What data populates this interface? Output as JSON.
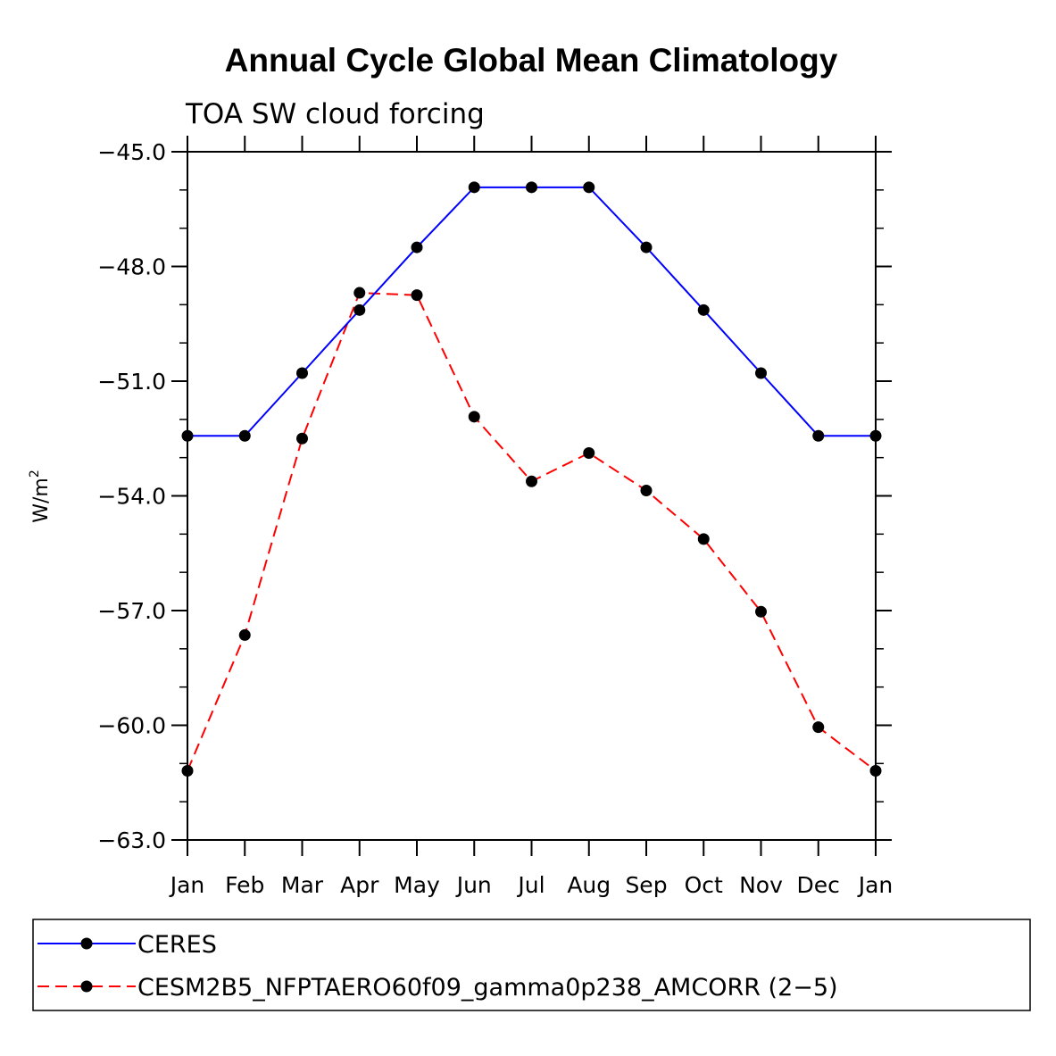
{
  "chart_data": {
    "type": "line",
    "title": "Annual Cycle Global Mean Climatology",
    "subtitle": "TOA SW cloud forcing",
    "xlabel": "",
    "ylabel": "W/m",
    "ylabel_superscript": "2",
    "categories": [
      "Jan",
      "Feb",
      "Mar",
      "Apr",
      "May",
      "Jun",
      "Jul",
      "Aug",
      "Sep",
      "Oct",
      "Nov",
      "Dec",
      "Jan"
    ],
    "ylim": [
      -63.0,
      -45.0
    ],
    "yticks": [
      -45.0,
      -48.0,
      -51.0,
      -54.0,
      -57.0,
      -60.0,
      -63.0
    ],
    "ytick_labels": [
      "−45.0",
      "−48.0",
      "−51.0",
      "−54.0",
      "−57.0",
      "−60.0",
      "−63.0"
    ],
    "grid": false,
    "legend_position": "bottom",
    "series": [
      {
        "name": "CERES",
        "color": "#0000ff",
        "line_style": "solid",
        "marker": "filled-circle",
        "values": [
          -52.43,
          -52.43,
          -50.79,
          -49.14,
          -47.5,
          -45.93,
          -45.93,
          -45.93,
          -47.5,
          -49.14,
          -50.79,
          -52.43,
          -52.43
        ]
      },
      {
        "name": "CESM2B5_NFPTAERO60f09_gamma0p238_AMCORR (2−5)",
        "color": "#ff0000",
        "line_style": "dashed",
        "marker": "filled-circle",
        "values": [
          -61.19,
          -57.64,
          -52.5,
          -48.69,
          -48.75,
          -51.93,
          -53.62,
          -52.88,
          -53.86,
          -55.13,
          -57.03,
          -60.05,
          -61.19
        ]
      }
    ]
  }
}
